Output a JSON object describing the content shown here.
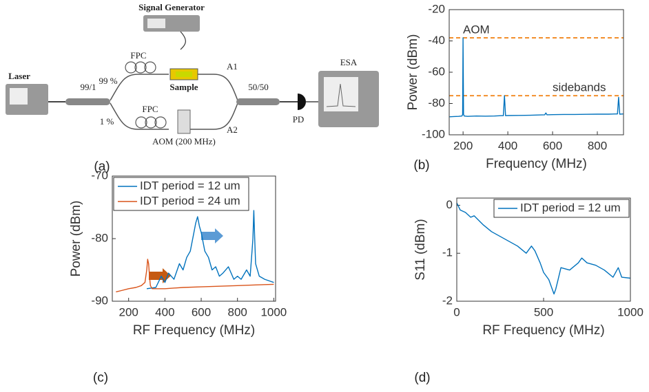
{
  "panel_labels": [
    "(a)",
    "(b)",
    "(c)",
    "(d)"
  ],
  "diagram": {
    "signal_generator": "Signal Generator",
    "laser": "Laser",
    "splitter": "99/1",
    "fpc_top": "FPC",
    "fpc_bottom": "FPC",
    "upper_ratio": "99 %",
    "lower_ratio": "1 %",
    "sample": "Sample",
    "aom": "AOM (200 MHz)",
    "a1": "A1",
    "a2": "A2",
    "coupler": "50/50",
    "pd": "PD",
    "esa": "ESA"
  },
  "chart_data": [
    {
      "type": "line",
      "xlabel": "Frequency (MHz)",
      "ylabel": "Power (dBm)",
      "xlim": [
        138,
        917
      ],
      "ylim": [
        -100,
        -20
      ],
      "xticks": [
        200,
        400,
        600,
        800
      ],
      "yticks": [
        -100,
        -80,
        -60,
        -40,
        -20
      ],
      "series": [
        {
          "color": "#0072bd",
          "x": [
            140,
            160,
            180,
            195,
            198,
            200,
            202,
            205,
            220,
            260,
            300,
            340,
            370,
            380,
            385,
            390,
            400,
            450,
            500,
            550,
            565,
            570,
            575,
            600,
            650,
            700,
            750,
            800,
            850,
            880,
            890,
            895,
            900,
            915
          ],
          "values": [
            -88.5,
            -88.3,
            -88.2,
            -88,
            -87,
            -38,
            -87,
            -88,
            -88.2,
            -88,
            -88.1,
            -88,
            -87.8,
            -87.8,
            -75,
            -87.8,
            -87.7,
            -87.6,
            -87.5,
            -87.3,
            -87.2,
            -86,
            -87.2,
            -87.1,
            -87,
            -87,
            -86.9,
            -86.8,
            -86.8,
            -86.7,
            -86.7,
            -76,
            -86.8,
            -86.7
          ]
        }
      ],
      "annotations": [
        {
          "text": "AOM",
          "value": -38,
          "color": "#f28e2b"
        },
        {
          "text": "sidebands",
          "value": -75,
          "color": "#f28e2b"
        }
      ]
    },
    {
      "type": "line",
      "xlabel": "RF Frequency (MHz)",
      "ylabel": "Power (dBm)",
      "xlim": [
        110,
        1010
      ],
      "ylim": [
        -90,
        -70
      ],
      "xticks": [
        200,
        400,
        600,
        800,
        1000
      ],
      "yticks": [
        -90,
        -80,
        -70
      ],
      "legend": "upper left",
      "series": [
        {
          "name": "IDT period = 12 um",
          "color": "#0072bd",
          "x": [
            300,
            350,
            380,
            400,
            420,
            450,
            480,
            500,
            520,
            540,
            560,
            570,
            580,
            590,
            600,
            620,
            640,
            660,
            680,
            700,
            720,
            750,
            780,
            800,
            820,
            850,
            870,
            880,
            885,
            890,
            895,
            900,
            920,
            950,
            980,
            1000
          ],
          "values": [
            -88,
            -87.8,
            -86,
            -87,
            -85.5,
            -86.5,
            -84,
            -85,
            -83,
            -82,
            -79,
            -77.5,
            -76.5,
            -78,
            -79,
            -82,
            -83,
            -85,
            -84.5,
            -86,
            -85.5,
            -84.5,
            -86.5,
            -86,
            -86.5,
            -85,
            -86,
            -82,
            -80,
            -75.5,
            -80,
            -84,
            -86,
            -86.5,
            -86.8,
            -87
          ]
        },
        {
          "name": "IDT period = 24 um",
          "color": "#d95319",
          "x": [
            130,
            160,
            200,
            240,
            270,
            290,
            300,
            305,
            310,
            315,
            320,
            330,
            360,
            400,
            500,
            600,
            700,
            800,
            900,
            1000
          ],
          "values": [
            -88.5,
            -88.3,
            -88,
            -87.8,
            -87.5,
            -87,
            -85,
            -83.3,
            -84,
            -86,
            -87.5,
            -88,
            -88,
            -88,
            -87.8,
            -87.7,
            -87.6,
            -87.5,
            -87.4,
            -87.3
          ]
        }
      ]
    },
    {
      "type": "line",
      "xlabel": "RF Frequency (MHz)",
      "ylabel": "S11 (dBm)",
      "xlim": [
        0,
        1000
      ],
      "ylim": [
        -2,
        0.15
      ],
      "xticks": [
        0,
        500,
        1000
      ],
      "yticks": [
        0,
        -1,
        -2
      ],
      "legend": "upper right",
      "series": [
        {
          "name": "IDT period = 12 um",
          "color": "#0072bd",
          "x": [
            0,
            20,
            50,
            80,
            100,
            150,
            200,
            250,
            300,
            350,
            400,
            430,
            450,
            480,
            500,
            530,
            550,
            560,
            570,
            580,
            600,
            650,
            700,
            720,
            750,
            800,
            850,
            900,
            930,
            950,
            1000
          ],
          "values": [
            0.05,
            -0.1,
            -0.15,
            -0.25,
            -0.22,
            -0.4,
            -0.55,
            -0.65,
            -0.75,
            -0.85,
            -1.0,
            -0.85,
            -0.95,
            -1.2,
            -1.4,
            -1.55,
            -1.75,
            -1.85,
            -1.75,
            -1.6,
            -1.3,
            -1.35,
            -1.2,
            -1.1,
            -1.2,
            -1.25,
            -1.35,
            -1.5,
            -1.3,
            -1.5,
            -1.52
          ]
        }
      ]
    }
  ]
}
